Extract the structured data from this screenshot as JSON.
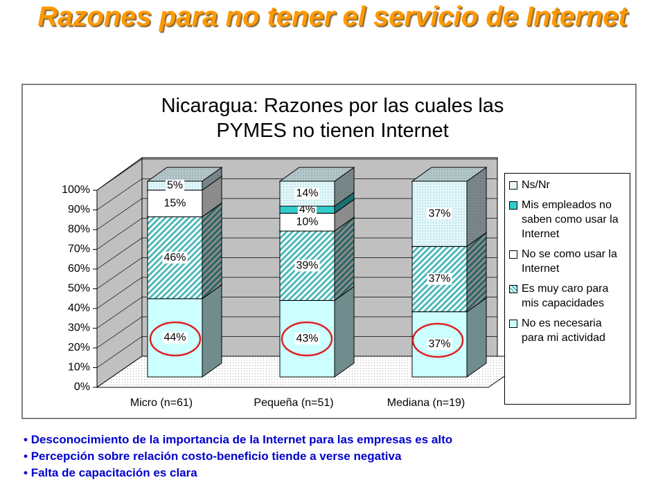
{
  "header": {
    "title": "Razones para no tener el servicio de Internet"
  },
  "chart_data": {
    "type": "bar",
    "stacking": "percent",
    "title": "Nicaragua: Razones por las cuales las PYMES no tienen Internet",
    "categories": [
      "Micro (n=61)",
      "Pequeña (n=51)",
      "Mediana (n=19)"
    ],
    "series": [
      {
        "name": "No es necesaria para mi actividad",
        "color": "#ccffff",
        "pattern": "solid",
        "values": [
          44,
          43,
          37
        ],
        "value_labels": [
          "44%",
          "43%",
          "37%"
        ]
      },
      {
        "name": "Es muy caro para mis capacidades",
        "color": "#4db8b8",
        "pattern": "diagonal",
        "values": [
          46,
          39,
          37
        ],
        "value_labels": [
          "46%",
          "39%",
          "37%"
        ]
      },
      {
        "name": "No se como usar la Internet",
        "color": "#ffffff",
        "pattern": "solid",
        "values": [
          15,
          10,
          null
        ],
        "value_labels": [
          "15%",
          "10%",
          null
        ]
      },
      {
        "name": "Mis empleados no saben como usar la Internet",
        "color": "#33cccc",
        "pattern": "solid",
        "values": [
          null,
          4,
          null
        ],
        "value_labels": [
          null,
          "4%",
          null
        ]
      },
      {
        "name": "Ns/Nr",
        "color": "#bfe8ee",
        "pattern": "dots",
        "values": [
          5,
          14,
          37
        ],
        "value_labels": [
          "5%",
          "14%",
          "37%"
        ]
      }
    ],
    "ylim": [
      0,
      100
    ],
    "yticks": [
      {
        "value": 0,
        "label": "0%"
      },
      {
        "value": 10,
        "label": "10%"
      },
      {
        "value": 20,
        "label": "20%"
      },
      {
        "value": 30,
        "label": "30%"
      },
      {
        "value": 40,
        "label": "40%"
      },
      {
        "value": 50,
        "label": "50%"
      },
      {
        "value": 60,
        "label": "60%"
      },
      {
        "value": 70,
        "label": "70%"
      },
      {
        "value": 80,
        "label": "80%"
      },
      {
        "value": 90,
        "label": "90%"
      },
      {
        "value": 100,
        "label": "100%"
      }
    ],
    "grid": true,
    "legend": "right"
  },
  "bullets": [
    "Desconocimiento de la importancia de la Internet para las empresas es alto",
    "Percepción sobre relación costo-beneficio tiende a verse negativa",
    "Falta de capacitación es clara"
  ]
}
